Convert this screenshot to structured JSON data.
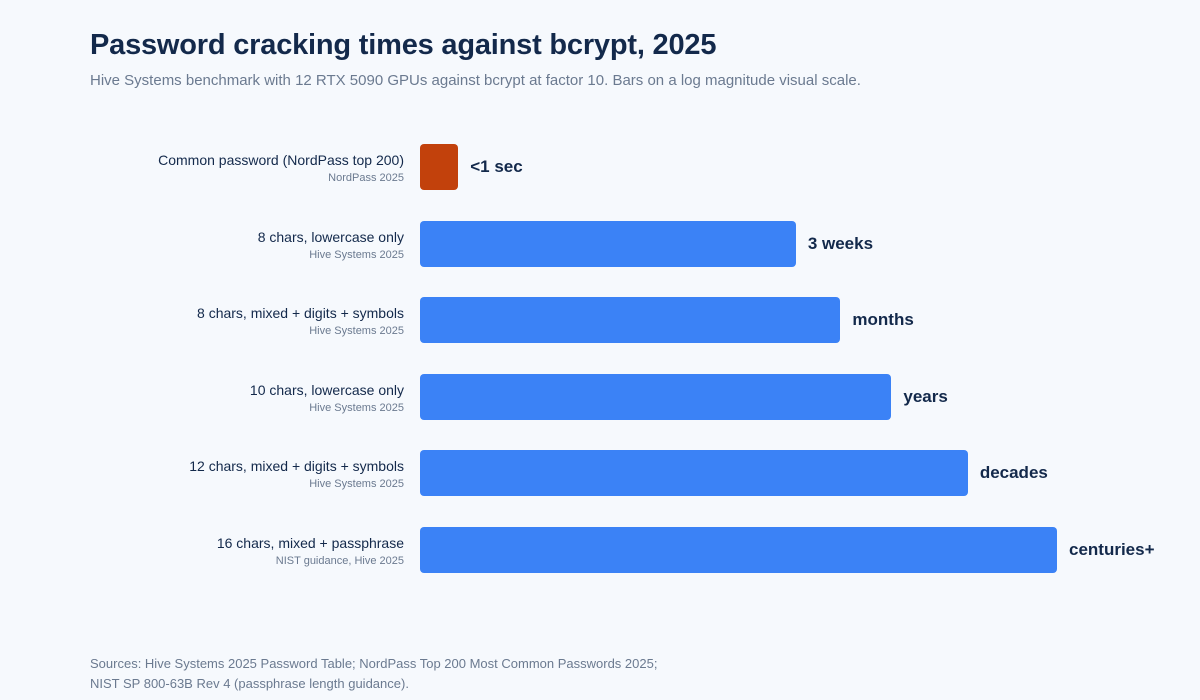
{
  "header": {
    "title": "Password cracking times against bcrypt, 2025",
    "subtitle": "Hive Systems benchmark with 12 RTX 5090 GPUs against bcrypt at factor 10. Bars on a log magnitude visual scale."
  },
  "chart_data": {
    "type": "bar",
    "orientation": "horizontal",
    "title": "Password cracking times against bcrypt, 2025",
    "scale": "log magnitude (visual)",
    "categories": [
      "Common password (NordPass top 200)",
      "8 chars, lowercase only",
      "8 chars, mixed + digits + symbols",
      "10 chars, lowercase only",
      "12 chars, mixed + digits + symbols",
      "16 chars, mixed + passphrase"
    ],
    "sources": [
      "NordPass 2025",
      "Hive Systems 2025",
      "Hive Systems 2025",
      "Hive Systems 2025",
      "Hive Systems 2025",
      "NIST guidance, Hive 2025"
    ],
    "value_labels": [
      "<1 sec",
      "3 weeks",
      "months",
      "years",
      "decades",
      "centuries+"
    ],
    "values": [
      0.06,
      0.59,
      0.66,
      0.74,
      0.86,
      1.0
    ],
    "xlim": [
      0,
      1
    ],
    "colors": [
      "#c2410c",
      "#3b82f6",
      "#3b82f6",
      "#3b82f6",
      "#3b82f6",
      "#3b82f6"
    ]
  },
  "footer": {
    "line1": "Sources: Hive Systems 2025 Password Table; NordPass Top 200 Most Common Passwords 2025;",
    "line2": "NIST SP 800-63B Rev 4 (passphrase length guidance)."
  }
}
